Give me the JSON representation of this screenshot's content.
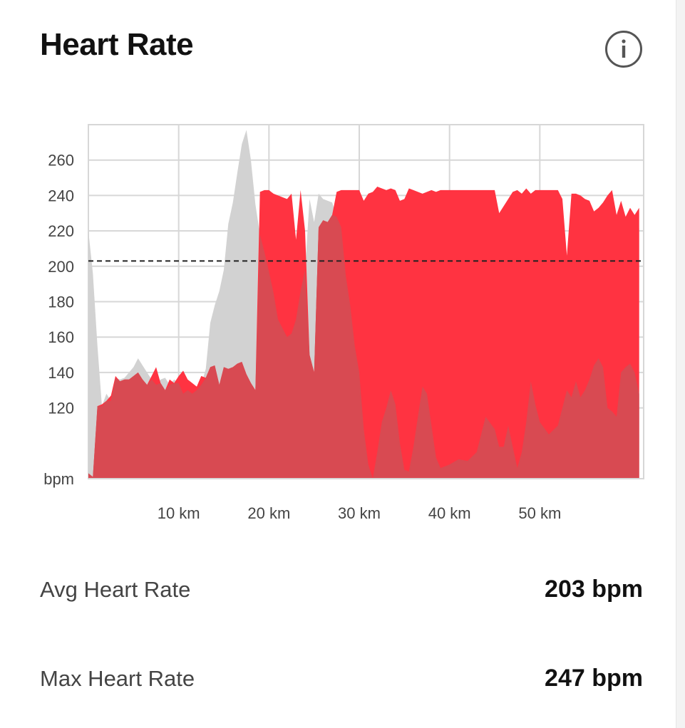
{
  "title": "Heart Rate",
  "info_icon": "info-icon",
  "colors": {
    "current": "#ff3341",
    "comparison": "#d2d2d2",
    "overlap": "#d84a52",
    "grid": "#d7d7d7",
    "average_line": "#222222"
  },
  "chart_data": {
    "type": "area",
    "ylabel": "bpm",
    "xlabel": "",
    "ylim": [
      80,
      280
    ],
    "xlim": [
      0,
      61.5
    ],
    "y_ticks": [
      120,
      140,
      160,
      180,
      200,
      220,
      240,
      260
    ],
    "y_tick_labels": [
      "120",
      "140",
      "160",
      "180",
      "200",
      "220",
      "240",
      "260"
    ],
    "x_ticks": [
      10,
      20,
      30,
      40,
      50
    ],
    "x_tick_labels": [
      "10 km",
      "20 km",
      "30 km",
      "40 km",
      "50 km"
    ],
    "grid": true,
    "average_line": 203,
    "series": [
      {
        "values": [
          [
            0,
            83
          ],
          [
            0.5,
            81
          ],
          [
            1,
            121
          ],
          [
            1.5,
            122
          ],
          [
            2,
            124
          ],
          [
            2.5,
            127
          ],
          [
            3,
            138
          ],
          [
            3.5,
            135
          ],
          [
            4,
            136
          ],
          [
            4.5,
            136
          ],
          [
            5,
            138
          ],
          [
            5.5,
            140
          ],
          [
            6,
            136
          ],
          [
            6.5,
            133
          ],
          [
            7,
            138
          ],
          [
            7.5,
            143
          ],
          [
            8,
            134
          ],
          [
            8.5,
            130
          ],
          [
            9,
            136
          ],
          [
            9.5,
            134
          ],
          [
            10,
            138
          ],
          [
            10.5,
            141
          ],
          [
            11,
            136
          ],
          [
            11.5,
            134
          ],
          [
            12,
            132
          ],
          [
            12.5,
            138
          ],
          [
            13,
            137
          ],
          [
            13.5,
            143
          ],
          [
            14,
            144
          ],
          [
            14.5,
            133
          ],
          [
            15,
            143
          ],
          [
            15.5,
            142
          ],
          [
            16,
            143
          ],
          [
            16.5,
            145
          ],
          [
            17,
            146
          ],
          [
            17.5,
            139
          ],
          [
            18,
            134
          ],
          [
            18.5,
            130
          ],
          [
            19,
            242
          ],
          [
            19.5,
            243
          ],
          [
            20,
            243
          ],
          [
            20.5,
            241
          ],
          [
            21,
            240
          ],
          [
            21.5,
            239
          ],
          [
            22,
            238
          ],
          [
            22.5,
            241
          ],
          [
            23,
            215
          ],
          [
            23.5,
            243
          ],
          [
            24,
            220
          ],
          [
            24.5,
            150
          ],
          [
            25,
            140
          ],
          [
            25.5,
            222
          ],
          [
            26,
            226
          ],
          [
            26.5,
            225
          ],
          [
            27,
            229
          ],
          [
            27.5,
            242
          ],
          [
            28,
            243
          ],
          [
            28.5,
            243
          ],
          [
            29,
            243
          ],
          [
            29.5,
            243
          ],
          [
            30,
            243
          ],
          [
            30.5,
            237
          ],
          [
            31,
            241
          ],
          [
            31.5,
            242
          ],
          [
            32,
            245
          ],
          [
            32.5,
            244
          ],
          [
            33,
            243
          ],
          [
            33.5,
            244
          ],
          [
            34,
            243
          ],
          [
            34.5,
            237
          ],
          [
            35,
            238
          ],
          [
            35.5,
            244
          ],
          [
            36,
            243
          ],
          [
            36.5,
            242
          ],
          [
            37,
            241
          ],
          [
            37.5,
            242
          ],
          [
            38,
            243
          ],
          [
            38.5,
            242
          ],
          [
            39,
            243
          ],
          [
            40,
            243
          ],
          [
            41,
            243
          ],
          [
            42,
            243
          ],
          [
            43,
            243
          ],
          [
            44,
            243
          ],
          [
            45,
            243
          ],
          [
            45.5,
            230
          ],
          [
            46,
            234
          ],
          [
            46.5,
            238
          ],
          [
            47,
            242
          ],
          [
            47.5,
            243
          ],
          [
            48,
            241
          ],
          [
            48.5,
            244
          ],
          [
            49,
            241
          ],
          [
            49.5,
            243
          ],
          [
            50,
            243
          ],
          [
            51,
            243
          ],
          [
            52,
            243
          ],
          [
            52.5,
            238
          ],
          [
            53,
            206
          ],
          [
            53.5,
            241
          ],
          [
            54,
            241
          ],
          [
            54.5,
            240
          ],
          [
            55,
            238
          ],
          [
            55.5,
            237
          ],
          [
            56,
            231
          ],
          [
            56.5,
            233
          ],
          [
            57,
            236
          ],
          [
            57.5,
            240
          ],
          [
            58,
            243
          ],
          [
            58.5,
            229
          ],
          [
            59,
            237
          ],
          [
            59.5,
            228
          ],
          [
            60,
            233
          ],
          [
            60.5,
            229
          ],
          [
            61,
            233
          ]
        ]
      },
      {
        "values": [
          [
            0,
            220
          ],
          [
            0.5,
            196
          ],
          [
            1,
            155
          ],
          [
            1.5,
            121
          ],
          [
            2,
            128
          ],
          [
            2.5,
            124
          ],
          [
            3,
            137
          ],
          [
            3.5,
            136
          ],
          [
            4,
            137
          ],
          [
            4.5,
            140
          ],
          [
            5,
            143
          ],
          [
            5.5,
            148
          ],
          [
            6,
            144
          ],
          [
            6.5,
            140
          ],
          [
            7,
            136
          ],
          [
            7.5,
            133
          ],
          [
            8,
            136
          ],
          [
            8.5,
            137
          ],
          [
            9,
            133
          ],
          [
            9.5,
            136
          ],
          [
            10,
            134
          ],
          [
            10.5,
            128
          ],
          [
            11,
            130
          ],
          [
            11.5,
            128
          ],
          [
            12,
            130
          ],
          [
            12.5,
            133
          ],
          [
            13,
            142
          ],
          [
            13.5,
            168
          ],
          [
            14,
            178
          ],
          [
            14.5,
            186
          ],
          [
            15,
            198
          ],
          [
            15.5,
            224
          ],
          [
            16,
            236
          ],
          [
            16.5,
            253
          ],
          [
            17,
            269
          ],
          [
            17.5,
            277
          ],
          [
            18,
            260
          ],
          [
            18.5,
            235
          ],
          [
            19,
            218
          ],
          [
            19.5,
            208
          ],
          [
            20,
            197
          ],
          [
            20.5,
            185
          ],
          [
            21,
            170
          ],
          [
            21.5,
            165
          ],
          [
            22,
            160
          ],
          [
            22.5,
            162
          ],
          [
            23,
            170
          ],
          [
            23.5,
            186
          ],
          [
            24,
            198
          ],
          [
            24.5,
            238
          ],
          [
            25,
            225
          ],
          [
            25.5,
            241
          ],
          [
            26,
            238
          ],
          [
            26.5,
            237
          ],
          [
            27,
            236
          ],
          [
            27.5,
            228
          ],
          [
            28,
            222
          ],
          [
            28.5,
            195
          ],
          [
            29,
            178
          ],
          [
            29.5,
            155
          ],
          [
            30,
            140
          ],
          [
            30.5,
            108
          ],
          [
            31,
            88
          ],
          [
            31.5,
            80
          ],
          [
            32,
            95
          ],
          [
            32.5,
            112
          ],
          [
            33,
            120
          ],
          [
            33.5,
            130
          ],
          [
            34,
            122
          ],
          [
            34.5,
            100
          ],
          [
            35,
            85
          ],
          [
            35.5,
            84
          ],
          [
            36,
            98
          ],
          [
            36.5,
            115
          ],
          [
            37,
            132
          ],
          [
            37.5,
            128
          ],
          [
            38,
            110
          ],
          [
            38.5,
            92
          ],
          [
            39,
            86
          ],
          [
            39.5,
            88
          ],
          [
            40,
            91
          ],
          [
            40.5,
            90
          ],
          [
            41,
            95
          ],
          [
            41.5,
            115
          ],
          [
            42,
            108
          ],
          [
            42.5,
            98
          ],
          [
            43,
            98
          ],
          [
            43.5,
            110
          ],
          [
            44,
            98
          ],
          [
            44.5,
            86
          ],
          [
            45,
            95
          ],
          [
            45.5,
            112
          ],
          [
            46,
            135
          ],
          [
            46.5,
            122
          ],
          [
            47,
            112
          ],
          [
            47.5,
            105
          ],
          [
            48,
            110
          ],
          [
            48.5,
            120
          ],
          [
            49,
            130
          ],
          [
            49.5,
            126
          ],
          [
            50,
            135
          ],
          [
            50.5,
            126
          ],
          [
            51,
            130
          ],
          [
            51.5,
            136
          ],
          [
            52,
            144
          ],
          [
            52.5,
            148
          ],
          [
            53,
            143
          ],
          [
            53.5,
            120
          ],
          [
            54,
            118
          ],
          [
            54.5,
            115
          ],
          [
            55,
            140
          ],
          [
            55.5,
            143
          ],
          [
            56,
            145
          ],
          [
            56.5,
            140
          ],
          [
            57,
            128
          ],
          [
            57.5,
            120
          ],
          [
            58,
            121
          ],
          [
            58.5,
            128
          ],
          [
            59,
            142
          ],
          [
            59.5,
            160
          ],
          [
            60,
            174
          ],
          [
            60.5,
            190
          ],
          [
            61,
            222
          ]
        ]
      }
    ]
  },
  "stats": {
    "avg_label": "Avg Heart Rate",
    "avg_value": "203 bpm",
    "max_label": "Max Heart Rate",
    "max_value": "247 bpm"
  }
}
